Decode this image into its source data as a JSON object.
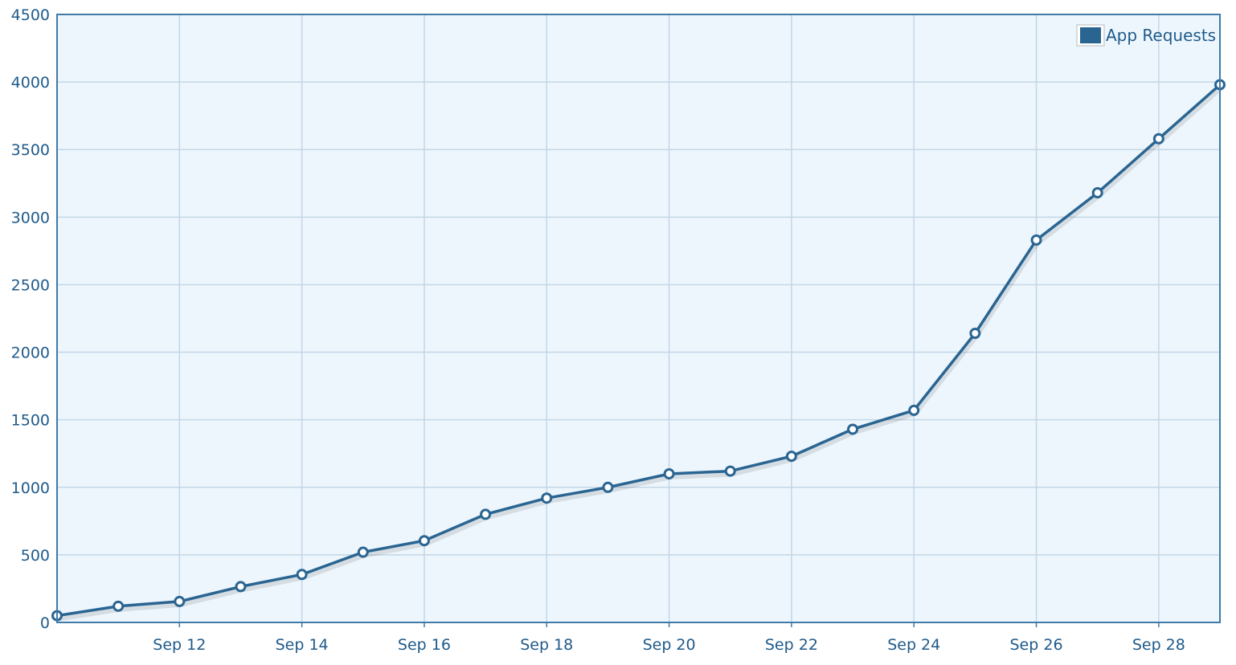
{
  "chart_data": {
    "type": "line",
    "title": "",
    "xlabel": "",
    "ylabel": "",
    "legend": {
      "placement": "top-right",
      "entries": [
        "App Requests"
      ]
    },
    "grid": true,
    "xlim": [
      "2011-09-10",
      "2011-09-29"
    ],
    "ylim": [
      0,
      4500
    ],
    "x_ticks": [
      {
        "date": "2011-09-12",
        "label": "Sep 12"
      },
      {
        "date": "2011-09-14",
        "label": "Sep 14"
      },
      {
        "date": "2011-09-16",
        "label": "Sep 16"
      },
      {
        "date": "2011-09-18",
        "label": "Sep 18"
      },
      {
        "date": "2011-09-20",
        "label": "Sep 20"
      },
      {
        "date": "2011-09-22",
        "label": "Sep 22"
      },
      {
        "date": "2011-09-24",
        "label": "Sep 24"
      },
      {
        "date": "2011-09-26",
        "label": "Sep 26"
      },
      {
        "date": "2011-09-28",
        "label": "Sep 28"
      }
    ],
    "y_ticks": [
      0,
      500,
      1000,
      1500,
      2000,
      2500,
      3000,
      3500,
      4000,
      4500
    ],
    "series": [
      {
        "name": "App Requests",
        "color": "#2a6592",
        "x": [
          "2011-09-10",
          "2011-09-11",
          "2011-09-12",
          "2011-09-13",
          "2011-09-14",
          "2011-09-15",
          "2011-09-16",
          "2011-09-17",
          "2011-09-18",
          "2011-09-19",
          "2011-09-20",
          "2011-09-21",
          "2011-09-22",
          "2011-09-23",
          "2011-09-24",
          "2011-09-25",
          "2011-09-26",
          "2011-09-27",
          "2011-09-28",
          "2011-09-29"
        ],
        "values": [
          50,
          120,
          155,
          265,
          355,
          520,
          605,
          800,
          920,
          1000,
          1100,
          1120,
          1230,
          1430,
          1570,
          2140,
          2830,
          3180,
          3580,
          3980
        ]
      }
    ],
    "colors": {
      "plot_background": "#eef6fd",
      "grid": "#c2d6e6",
      "axis": "#3f7aa8",
      "line": "#2a6592",
      "marker_fill": "#ffffff",
      "text": "#1f5a8a"
    }
  }
}
